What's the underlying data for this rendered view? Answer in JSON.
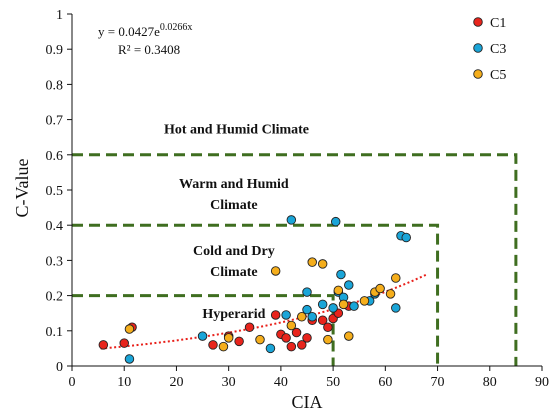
{
  "chart_data": {
    "type": "scatter",
    "xlabel": "CIA",
    "ylabel": "C-Value",
    "xlim": [
      0,
      90
    ],
    "ylim": [
      0,
      1
    ],
    "xticks": [
      "0",
      "10",
      "20",
      "30",
      "40",
      "50",
      "60",
      "70",
      "80",
      "90"
    ],
    "yticks": [
      "0",
      "0.1",
      "0.2",
      "0.3",
      "0.4",
      "0.5",
      "0.6",
      "0.7",
      "0.8",
      "0.9",
      "1"
    ],
    "grid": false,
    "legend_position": "top-right",
    "equation": {
      "line1": "y = 0.0427e",
      "line1_exp": "0.0266x",
      "line2": "R² = 0.3408"
    },
    "trendline": {
      "a": 0.0427,
      "b": 0.0266,
      "x_start": 5.5,
      "x_end": 68,
      "color": "#e8201a"
    },
    "regions": [
      {
        "label_lines": [
          "Hot and Humid Climate"
        ],
        "x_max": 85,
        "y_max": 0.6,
        "label_x": 31.5,
        "label_y": 0.675
      },
      {
        "label_lines": [
          "Warm and Humid",
          "Climate"
        ],
        "x_max": 70,
        "y_max": 0.4,
        "label_x": 31.0,
        "label_y": 0.49
      },
      {
        "label_lines": [
          "Cold and Dry",
          "Climate"
        ],
        "x_max": 50,
        "y_max": 0.2,
        "label_x": 31.0,
        "label_y": 0.3
      },
      {
        "label_lines": [
          "Hyperarid"
        ],
        "label_x": 31.0,
        "label_y": 0.15
      }
    ],
    "region_color": "#3f6e20",
    "series": [
      {
        "name": "C1",
        "color": "#e8241c",
        "points": [
          [
            6,
            0.06
          ],
          [
            10,
            0.065
          ],
          [
            11.5,
            0.11
          ],
          [
            27,
            0.06
          ],
          [
            30,
            0.085
          ],
          [
            32,
            0.07
          ],
          [
            34,
            0.11
          ],
          [
            39,
            0.145
          ],
          [
            40,
            0.09
          ],
          [
            41,
            0.08
          ],
          [
            42,
            0.055
          ],
          [
            43,
            0.095
          ],
          [
            44,
            0.06
          ],
          [
            45,
            0.08
          ],
          [
            46,
            0.13
          ],
          [
            48,
            0.13
          ],
          [
            49,
            0.11
          ],
          [
            50,
            0.135
          ],
          [
            51,
            0.15
          ],
          [
            53,
            0.17
          ]
        ]
      },
      {
        "name": "C3",
        "color": "#1aa5d8",
        "points": [
          [
            11,
            0.02
          ],
          [
            25,
            0.085
          ],
          [
            38,
            0.05
          ],
          [
            41,
            0.145
          ],
          [
            42,
            0.415
          ],
          [
            45,
            0.16
          ],
          [
            45,
            0.21
          ],
          [
            46,
            0.14
          ],
          [
            48,
            0.175
          ],
          [
            50,
            0.165
          ],
          [
            50.5,
            0.41
          ],
          [
            51,
            0.21
          ],
          [
            51.5,
            0.26
          ],
          [
            52,
            0.195
          ],
          [
            53,
            0.23
          ],
          [
            54,
            0.17
          ],
          [
            57,
            0.185
          ],
          [
            58,
            0.205
          ],
          [
            62,
            0.165
          ],
          [
            63,
            0.37
          ],
          [
            64,
            0.365
          ]
        ]
      },
      {
        "name": "C5",
        "color": "#f5ae1c",
        "points": [
          [
            11,
            0.105
          ],
          [
            29,
            0.055
          ],
          [
            30,
            0.08
          ],
          [
            36,
            0.075
          ],
          [
            39,
            0.27
          ],
          [
            42,
            0.115
          ],
          [
            44,
            0.14
          ],
          [
            46,
            0.295
          ],
          [
            48,
            0.29
          ],
          [
            49,
            0.075
          ],
          [
            51,
            0.215
          ],
          [
            52,
            0.175
          ],
          [
            53,
            0.085
          ],
          [
            56,
            0.185
          ],
          [
            58,
            0.21
          ],
          [
            59,
            0.22
          ],
          [
            61,
            0.205
          ],
          [
            62,
            0.25
          ]
        ]
      }
    ]
  }
}
